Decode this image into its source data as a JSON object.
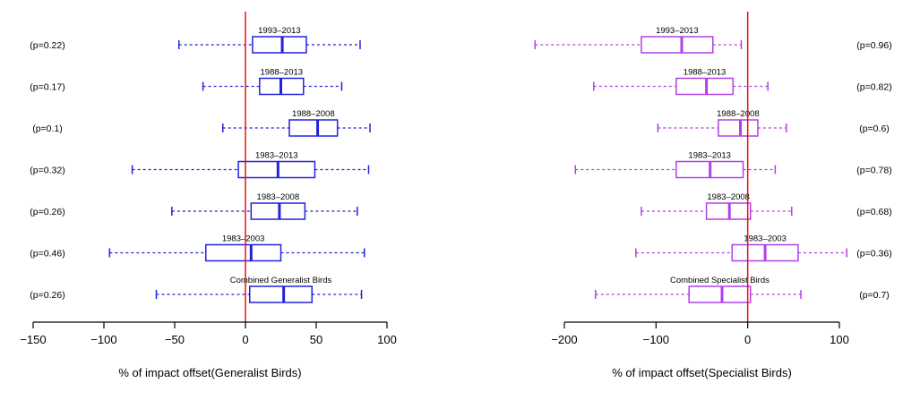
{
  "chart_data": [
    {
      "type": "boxplot",
      "orientation": "horizontal",
      "xlabel": "% of impact offset(Generalist Birds)",
      "xlim": [
        -150,
        100
      ],
      "xticks": [
        -150,
        -100,
        -50,
        0,
        50,
        100
      ],
      "reference_line": 0,
      "colors": {
        "box": "#2222dd",
        "reference": "#ee1111"
      },
      "boxes": [
        {
          "label": "1993–2013",
          "p": "(p=0.22)",
          "whisker_low": -47,
          "q1": 5,
          "median": 26,
          "q3": 43,
          "whisker_high": 81
        },
        {
          "label": "1988–2013",
          "p": "(p=0.17)",
          "whisker_low": -30,
          "q1": 10,
          "median": 25,
          "q3": 41,
          "whisker_high": 68
        },
        {
          "label": "1988–2008",
          "p": "(p=0.1)",
          "whisker_low": -16,
          "q1": 31,
          "median": 51,
          "q3": 65,
          "whisker_high": 88
        },
        {
          "label": "1983–2013",
          "p": "(p=0.32)",
          "whisker_low": -80,
          "q1": -5,
          "median": 23,
          "q3": 49,
          "whisker_high": 87
        },
        {
          "label": "1983–2008",
          "p": "(p=0.26)",
          "whisker_low": -52,
          "q1": 4,
          "median": 24,
          "q3": 42,
          "whisker_high": 79
        },
        {
          "label": "1983–2003",
          "p": "(p=0.46)",
          "whisker_low": -96,
          "q1": -28,
          "median": 4,
          "q3": 25,
          "whisker_high": 84
        },
        {
          "label": "Combined Generalist Birds",
          "p": "(p=0.26)",
          "whisker_low": -63,
          "q1": 3,
          "median": 27,
          "q3": 47,
          "whisker_high": 82
        }
      ]
    },
    {
      "type": "boxplot",
      "orientation": "horizontal",
      "xlabel": "% of impact offset(Specialist Birds)",
      "xlim": [
        -200,
        100
      ],
      "xticks": [
        -200,
        -100,
        0,
        100
      ],
      "reference_line": 0,
      "colors": {
        "box": "#b040e8",
        "reference": "#ee1111"
      },
      "boxes": [
        {
          "label": "1993–2013",
          "p": "(p=0.96)",
          "whisker_low": -232,
          "q1": -116,
          "median": -72,
          "q3": -38,
          "whisker_high": -7
        },
        {
          "label": "1988–2013",
          "p": "(p=0.82)",
          "whisker_low": -168,
          "q1": -78,
          "median": -45,
          "q3": -16,
          "whisker_high": 22
        },
        {
          "label": "1988–2008",
          "p": "(p=0.6)",
          "whisker_low": -98,
          "q1": -32,
          "median": -8,
          "q3": 11,
          "whisker_high": 42
        },
        {
          "label": "1983–2013",
          "p": "(p=0.78)",
          "whisker_low": -188,
          "q1": -78,
          "median": -41,
          "q3": -5,
          "whisker_high": 30
        },
        {
          "label": "1983–2008",
          "p": "(p=0.68)",
          "whisker_low": -116,
          "q1": -45,
          "median": -20,
          "q3": 3,
          "whisker_high": 48
        },
        {
          "label": "1983–2003",
          "p": "(p=0.36)",
          "whisker_low": -122,
          "q1": -17,
          "median": 19,
          "q3": 55,
          "whisker_high": 108
        },
        {
          "label": "Combined Specialist Birds",
          "p": "(p=0.7)",
          "whisker_low": -166,
          "q1": -64,
          "median": -28,
          "q3": 3,
          "whisker_high": 58
        }
      ]
    }
  ]
}
